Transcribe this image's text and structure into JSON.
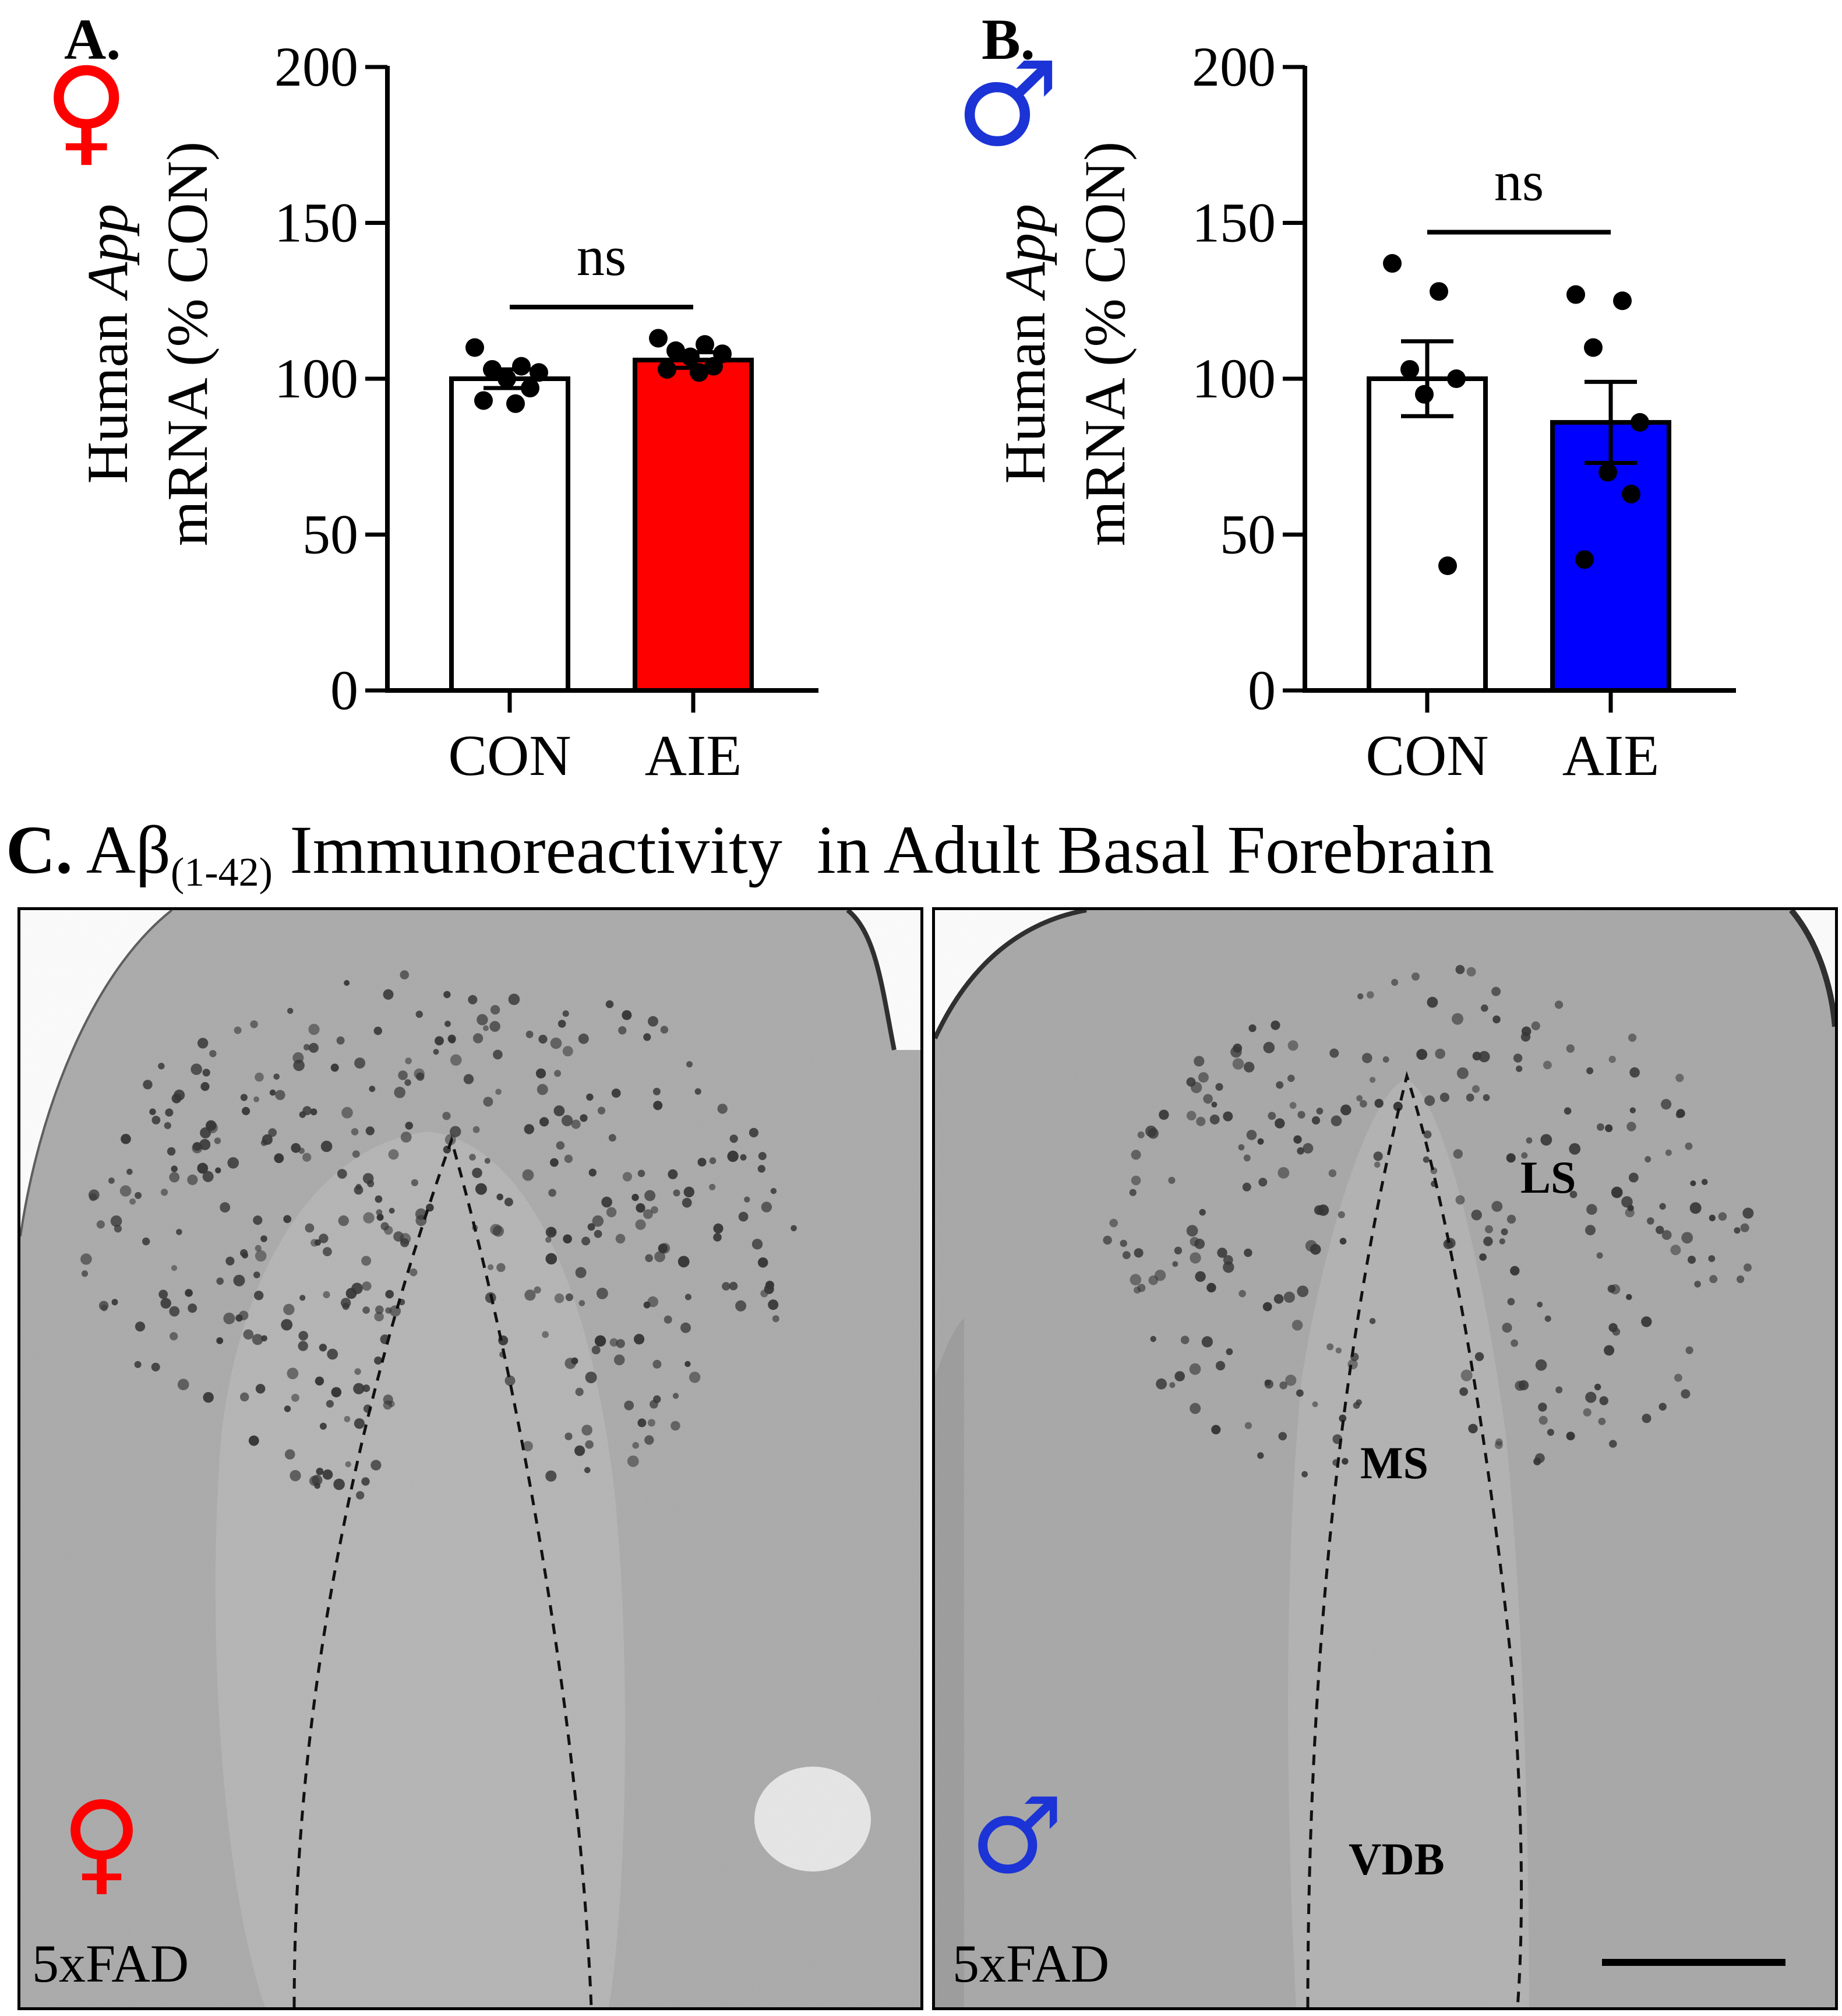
{
  "panels": {
    "a": {
      "letter": "A.",
      "sex_symbol": "♀",
      "sex_color": "#ff0000"
    },
    "b": {
      "letter": "B.",
      "sex_symbol": "♂",
      "sex_color": "#1c33d6"
    },
    "c": {
      "letter": "C.",
      "title_a": "Aβ",
      "title_sub": "(1-42)",
      "title_rest": "Immunoreactivity  in Adult Basal Forebrain"
    }
  },
  "micrographs": {
    "left": {
      "sex_symbol": "♀",
      "sex_color": "#ff0000",
      "genotype_label": "5xFAD"
    },
    "right": {
      "sex_symbol": "♂",
      "sex_color": "#1c33d6",
      "genotype_label": "5xFAD",
      "region_labels": [
        "LS",
        "MS",
        "VDB"
      ]
    }
  },
  "chart_data": [
    {
      "type": "bar",
      "panel": "A",
      "categories": [
        "CON",
        "AIE"
      ],
      "values": [
        100,
        106
      ],
      "sem": [
        3,
        2.5
      ],
      "bar_colors": [
        "#ffffff",
        "#ff0000"
      ],
      "points": [
        [
          110,
          104,
          103,
          102,
          100,
          97,
          93,
          92
        ],
        [
          113,
          111,
          109,
          108,
          107,
          104,
          103,
          102
        ]
      ],
      "ylabel_prefix": "Human ",
      "ylabel_italic": "App",
      "ylabel_line2": "mRNA (% CON)",
      "yticks": [
        0,
        50,
        100,
        150,
        200
      ],
      "ylim": [
        0,
        200
      ],
      "significance": "ns"
    },
    {
      "type": "bar",
      "panel": "B",
      "categories": [
        "CON",
        "AIE"
      ],
      "values": [
        100,
        86
      ],
      "sem": [
        12,
        13
      ],
      "bar_colors": [
        "#ffffff",
        "#0000ff"
      ],
      "points": [
        [
          137,
          128,
          103,
          100,
          95,
          40
        ],
        [
          127,
          125,
          110,
          86,
          70,
          63,
          42
        ]
      ],
      "ylabel_prefix": "Human ",
      "ylabel_italic": "App",
      "ylabel_line2": "mRNA (% CON)",
      "yticks": [
        0,
        50,
        100,
        150,
        200
      ],
      "ylim": [
        0,
        200
      ],
      "significance": "ns"
    }
  ]
}
